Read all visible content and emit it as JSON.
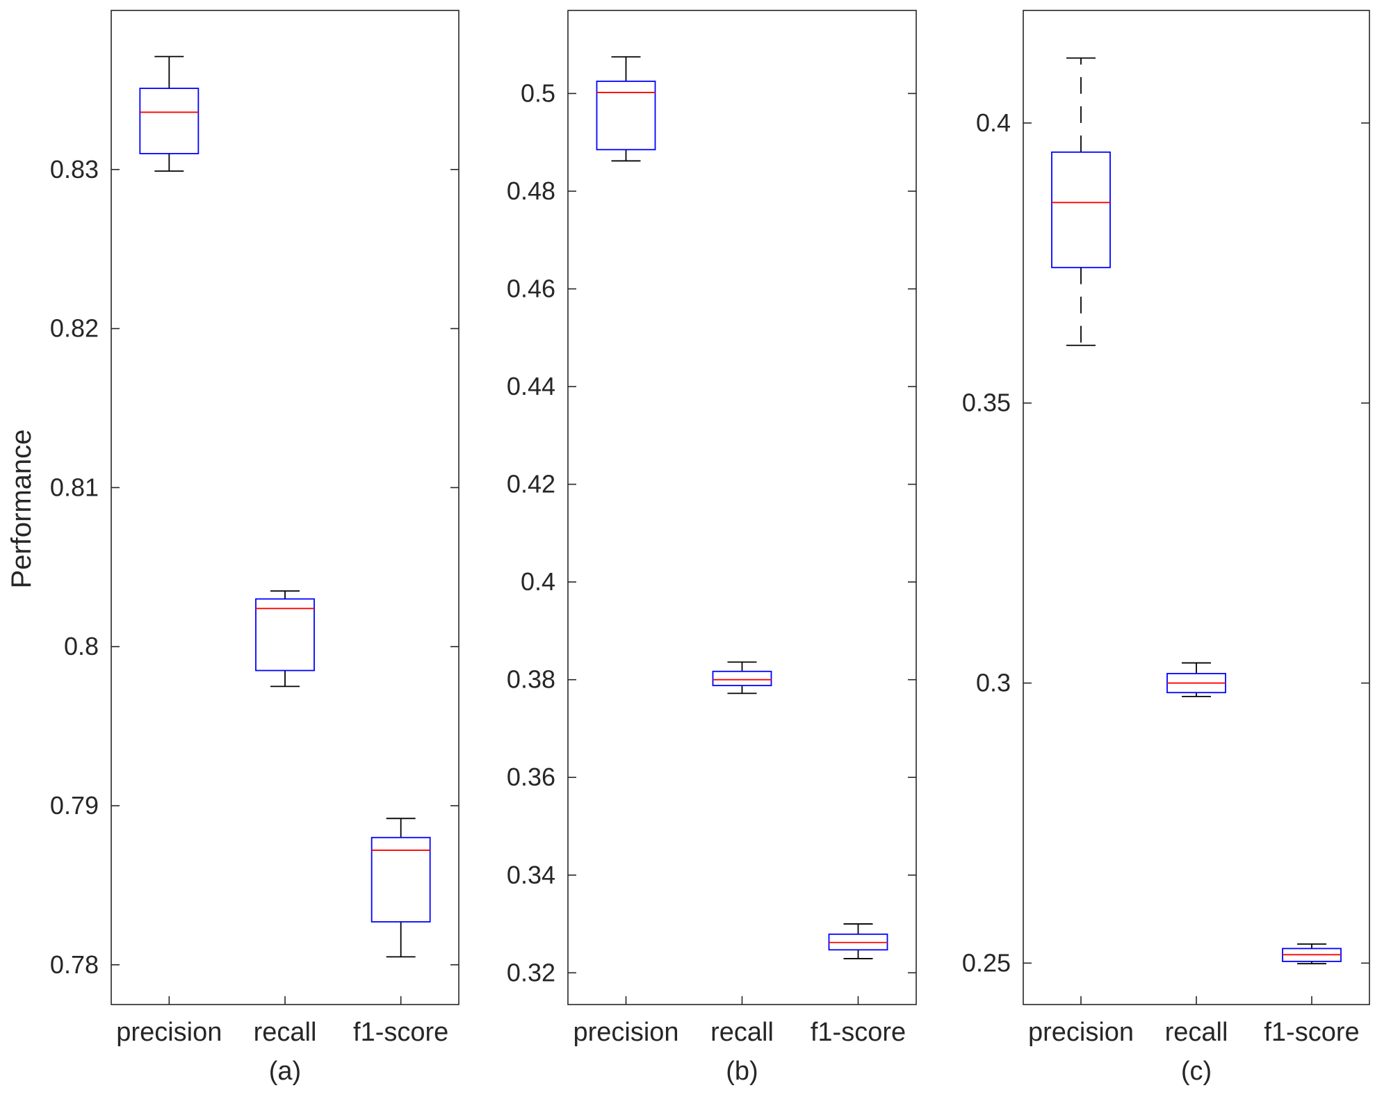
{
  "chart_data": [
    {
      "type": "boxplot",
      "panel_label": "(a)",
      "ylabel": "Performance",
      "ylim": [
        0.7775,
        0.84
      ],
      "yticks": [
        0.78,
        0.79,
        0.8,
        0.81,
        0.82,
        0.83
      ],
      "ytick_labels": [
        "0.78",
        "0.79",
        "0.8",
        "0.81",
        "0.82",
        "0.83"
      ],
      "categories": [
        "precision",
        "recall",
        "f1-score"
      ],
      "boxes": [
        {
          "name": "precision",
          "whisker_low": 0.8299,
          "q1": 0.831,
          "median": 0.8336,
          "q3": 0.8351,
          "whisker_high": 0.8371
        },
        {
          "name": "recall",
          "whisker_low": 0.7975,
          "q1": 0.7985,
          "median": 0.8024,
          "q3": 0.803,
          "whisker_high": 0.8035
        },
        {
          "name": "f1-score",
          "whisker_low": 0.7805,
          "q1": 0.7827,
          "median": 0.7872,
          "q3": 0.788,
          "whisker_high": 0.7892
        }
      ]
    },
    {
      "type": "boxplot",
      "panel_label": "(b)",
      "ylabel": "",
      "ylim": [
        0.3135,
        0.517
      ],
      "yticks": [
        0.32,
        0.34,
        0.36,
        0.38,
        0.4,
        0.42,
        0.44,
        0.46,
        0.48,
        0.5
      ],
      "ytick_labels": [
        "0.32",
        "0.34",
        "0.36",
        "0.38",
        "0.4",
        "0.42",
        "0.44",
        "0.46",
        "0.48",
        "0.5"
      ],
      "categories": [
        "precision",
        "recall",
        "f1-score"
      ],
      "boxes": [
        {
          "name": "precision",
          "whisker_low": 0.4862,
          "q1": 0.4885,
          "median": 0.5002,
          "q3": 0.5025,
          "whisker_high": 0.5075
        },
        {
          "name": "recall",
          "whisker_low": 0.3772,
          "q1": 0.3788,
          "median": 0.38,
          "q3": 0.3817,
          "whisker_high": 0.3836
        },
        {
          "name": "f1-score",
          "whisker_low": 0.3229,
          "q1": 0.3247,
          "median": 0.3262,
          "q3": 0.3279,
          "whisker_high": 0.33
        }
      ]
    },
    {
      "type": "boxplot",
      "panel_label": "(c)",
      "ylabel": "",
      "ylim": [
        0.2426,
        0.4201
      ],
      "yticks": [
        0.25,
        0.3,
        0.35,
        0.4
      ],
      "ytick_labels": [
        "0.25",
        "0.3",
        "0.35",
        "0.4"
      ],
      "categories": [
        "precision",
        "recall",
        "f1-score"
      ],
      "boxes": [
        {
          "name": "precision",
          "whisker_low": 0.3603,
          "q1": 0.3742,
          "median": 0.3858,
          "q3": 0.3948,
          "whisker_high": 0.4116,
          "dashed_whiskers": true
        },
        {
          "name": "recall",
          "whisker_low": 0.2976,
          "q1": 0.2983,
          "median": 0.3,
          "q3": 0.3017,
          "whisker_high": 0.3036
        },
        {
          "name": "f1-score",
          "whisker_low": 0.2499,
          "q1": 0.2503,
          "median": 0.2515,
          "q3": 0.2526,
          "whisker_high": 0.2534
        }
      ]
    }
  ],
  "colors": {
    "box": "#0000ff",
    "median": "#ff0000",
    "whisker": "#000000",
    "axis": "#262626"
  }
}
